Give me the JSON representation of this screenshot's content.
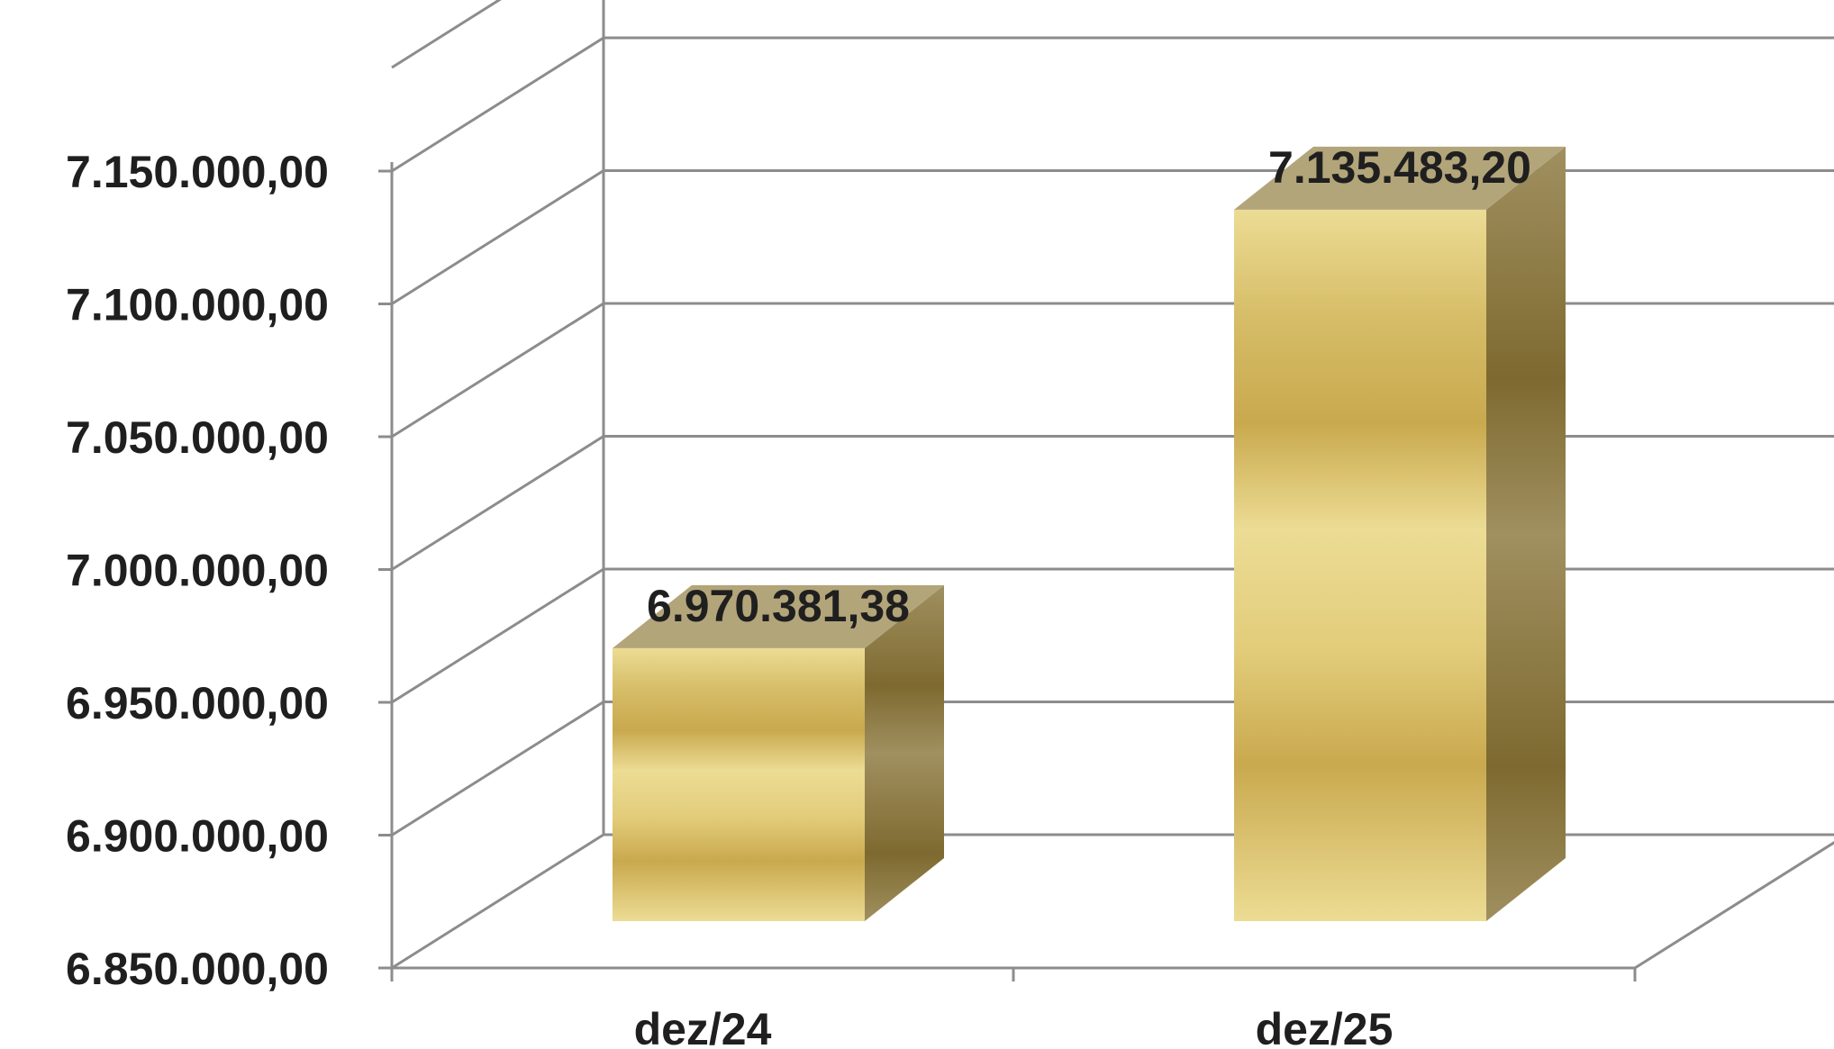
{
  "chart_data": {
    "type": "bar",
    "style": "3d-column",
    "categories": [
      "dez/24",
      "dez/25"
    ],
    "values": [
      6970381.38,
      7135483.2
    ],
    "data_labels": [
      "6.970.381,38",
      "7.135.483,20"
    ],
    "ylim": [
      6850000,
      7150000
    ],
    "yticks": [
      6850000,
      6900000,
      6950000,
      7000000,
      7050000,
      7100000,
      7150000
    ],
    "ytick_labels": [
      "6.850.000,00",
      "6.900.000,00",
      "6.950.000,00",
      "7.000.000,00",
      "7.050.000,00",
      "7.100.000,00",
      "7.150.000,00"
    ],
    "title": "",
    "xlabel": "",
    "ylabel": "",
    "grid": true,
    "legend": "none",
    "colors": {
      "bar_light": "#ecdc94",
      "bar_mid": "#c9a94e",
      "bar_side_light": "#a09060",
      "bar_side_dark": "#7e6a30",
      "bar_top": "#b3a57a",
      "grid": "#8c8c8c"
    }
  }
}
